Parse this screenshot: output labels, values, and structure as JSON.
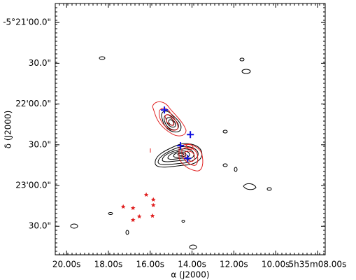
{
  "chart_data": {
    "type": "scatter",
    "xlabel": "α (J2000)",
    "ylabel": "δ (J2000)",
    "xlim": [
      20.54,
      7.63
    ],
    "ylim": [
      -171,
      14
    ],
    "xticks": [
      {
        "value": 20,
        "label": "20.00s"
      },
      {
        "value": 18,
        "label": "18.00s"
      },
      {
        "value": 16,
        "label": "16.00s"
      },
      {
        "value": 14,
        "label": "14.00s"
      },
      {
        "value": 12,
        "label": "12.00s"
      },
      {
        "value": 10,
        "label": "10.00s"
      },
      {
        "value": 8,
        "label": "5h35m08.00s"
      }
    ],
    "yticks": [
      {
        "value": 0,
        "label": "-5°21'00.0\""
      },
      {
        "value": -30,
        "label": "30.0\""
      },
      {
        "value": -60,
        "label": "22'00.0\""
      },
      {
        "value": -90,
        "label": "30.0\""
      },
      {
        "value": -120,
        "label": "23'00.0\""
      },
      {
        "value": -150,
        "label": "30.0\""
      }
    ],
    "series": [
      {
        "marker": "star",
        "color": "#e02020",
        "x": [
          16.19,
          17.29,
          16.82,
          15.85,
          15.85,
          15.89,
          16.52,
          16.82
        ],
        "y": [
          -126.8,
          -135.6,
          -136.6,
          -130.4,
          -134.5,
          -142.3,
          -142.8,
          -145.4
        ]
      },
      {
        "marker": "plus",
        "color": "#1010e0",
        "x": [
          15.32,
          14.08,
          14.55,
          14.21
        ],
        "y": [
          -64.4,
          -82.5,
          -90.7,
          -100.0
        ]
      }
    ]
  }
}
